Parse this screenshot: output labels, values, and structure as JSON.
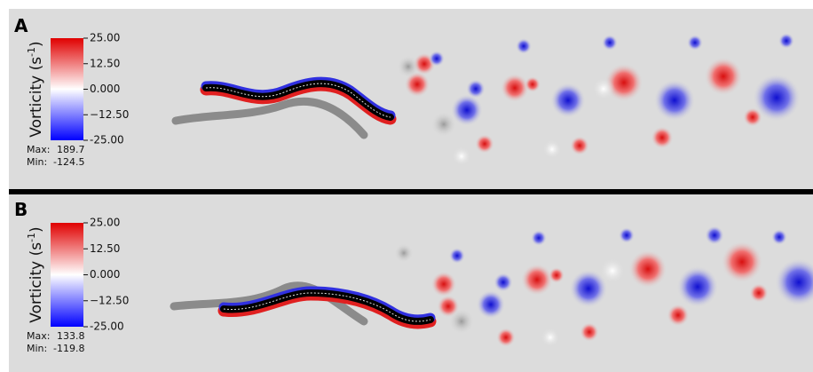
{
  "panels": [
    {
      "label": "A",
      "colorbar": {
        "title": "Vorticity (s",
        "title_sup": "-1",
        "title_end": ")",
        "lim": [
          -25,
          25
        ],
        "ticks": [
          {
            "value": 25,
            "label": "25.00"
          },
          {
            "value": 12.5,
            "label": "12.50"
          },
          {
            "value": 0,
            "label": "0.000"
          },
          {
            "value": -12.5,
            "label": "−12.50"
          },
          {
            "value": -25,
            "label": "-25.00"
          }
        ]
      },
      "max_label": "Max:",
      "max": "189.7",
      "min_label": "Min:",
      "min": "-124.5"
    },
    {
      "label": "B",
      "colorbar": {
        "title": "Vorticity (s",
        "title_sup": "-1",
        "title_end": ")",
        "lim": [
          -25,
          25
        ],
        "ticks": [
          {
            "value": 25,
            "label": "25.00"
          },
          {
            "value": 12.5,
            "label": "12.50"
          },
          {
            "value": 0,
            "label": "0.000"
          },
          {
            "value": -12.5,
            "label": "−12.50"
          },
          {
            "value": -25,
            "label": "-25.00"
          }
        ]
      },
      "max_label": "Max:",
      "max": "133.8",
      "min_label": "Min:",
      "min": "-119.8"
    }
  ]
}
